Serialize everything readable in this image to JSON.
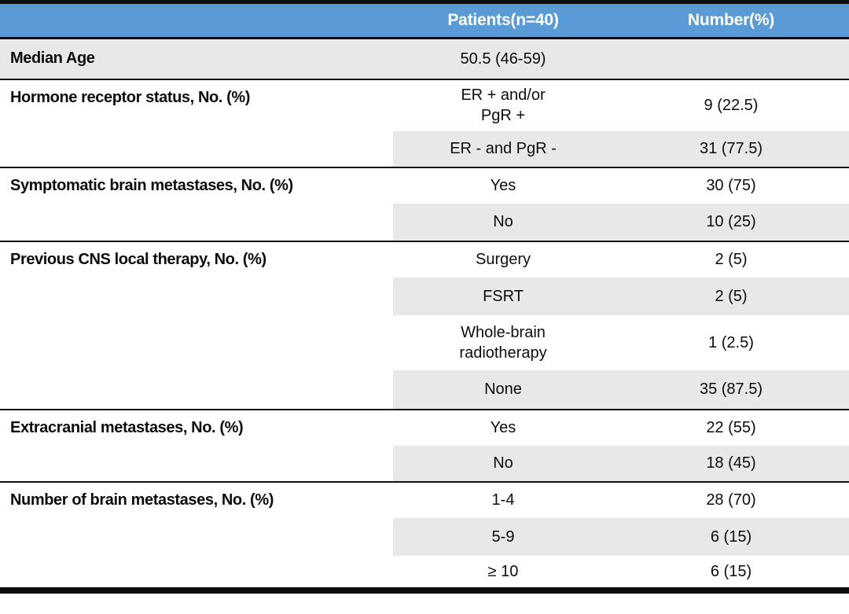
{
  "table": {
    "description": "Patient baseline characteristics table",
    "header": {
      "col1": "",
      "col2": "Patients(n=40)",
      "col3": "Number(%)"
    },
    "colors": {
      "header_bg": "#5B9BD5",
      "header_text": "#FFFFFF",
      "row_shade": "#E8E8E8",
      "border": "#0D0D0D",
      "text": "#0D0D0D"
    },
    "sections": [
      {
        "label": "Median Age",
        "rows": [
          {
            "patients": "50.5 (46-59)",
            "number": ""
          }
        ]
      },
      {
        "label": "Hormone receptor status, No. (%)",
        "rows": [
          {
            "patients": "ER + and/or\nPgR +",
            "number": "9 (22.5)"
          },
          {
            "patients": "ER - and PgR -",
            "number": "31 (77.5)"
          }
        ]
      },
      {
        "label": "Symptomatic brain metastases, No. (%)",
        "rows": [
          {
            "patients": "Yes",
            "number": "30 (75)"
          },
          {
            "patients": "No",
            "number": "10 (25)"
          }
        ]
      },
      {
        "label": "Previous CNS local therapy, No. (%)",
        "rows": [
          {
            "patients": "Surgery",
            "number": "2 (5)"
          },
          {
            "patients": "FSRT",
            "number": "2 (5)"
          },
          {
            "patients": "Whole-brain\nradiotherapy",
            "number": "1 (2.5)"
          },
          {
            "patients": "None",
            "number": "35 (87.5)"
          }
        ]
      },
      {
        "label": "Extracranial metastases, No. (%)",
        "rows": [
          {
            "patients": "Yes",
            "number": "22 (55)"
          },
          {
            "patients": "No",
            "number": "18 (45)"
          }
        ]
      },
      {
        "label": "Number of brain metastases, No. (%)",
        "rows": [
          {
            "patients": "1-4",
            "number": "28 (70)"
          },
          {
            "patients": "5-9",
            "number": "6 (15)"
          },
          {
            "patients": "≥ 10",
            "number": "6 (15)"
          }
        ]
      }
    ]
  }
}
